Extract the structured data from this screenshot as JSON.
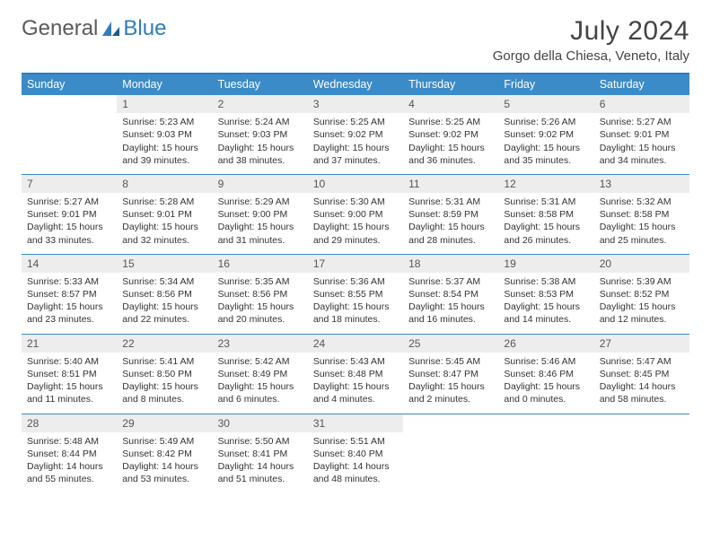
{
  "logo": {
    "text_a": "General",
    "text_b": "Blue"
  },
  "title": "July 2024",
  "location": "Gorgo della Chiesa, Veneto, Italy",
  "colors": {
    "header_blue": "#3b8bc8",
    "accent_blue": "#2f7bbf",
    "daynum_bg": "#ededed",
    "text": "#333333"
  },
  "weekdays": [
    "Sunday",
    "Monday",
    "Tuesday",
    "Wednesday",
    "Thursday",
    "Friday",
    "Saturday"
  ],
  "weeks": [
    [
      null,
      {
        "n": "1",
        "sr": "Sunrise: 5:23 AM",
        "ss": "Sunset: 9:03 PM",
        "dl": "Daylight: 15 hours and 39 minutes."
      },
      {
        "n": "2",
        "sr": "Sunrise: 5:24 AM",
        "ss": "Sunset: 9:03 PM",
        "dl": "Daylight: 15 hours and 38 minutes."
      },
      {
        "n": "3",
        "sr": "Sunrise: 5:25 AM",
        "ss": "Sunset: 9:02 PM",
        "dl": "Daylight: 15 hours and 37 minutes."
      },
      {
        "n": "4",
        "sr": "Sunrise: 5:25 AM",
        "ss": "Sunset: 9:02 PM",
        "dl": "Daylight: 15 hours and 36 minutes."
      },
      {
        "n": "5",
        "sr": "Sunrise: 5:26 AM",
        "ss": "Sunset: 9:02 PM",
        "dl": "Daylight: 15 hours and 35 minutes."
      },
      {
        "n": "6",
        "sr": "Sunrise: 5:27 AM",
        "ss": "Sunset: 9:01 PM",
        "dl": "Daylight: 15 hours and 34 minutes."
      }
    ],
    [
      {
        "n": "7",
        "sr": "Sunrise: 5:27 AM",
        "ss": "Sunset: 9:01 PM",
        "dl": "Daylight: 15 hours and 33 minutes."
      },
      {
        "n": "8",
        "sr": "Sunrise: 5:28 AM",
        "ss": "Sunset: 9:01 PM",
        "dl": "Daylight: 15 hours and 32 minutes."
      },
      {
        "n": "9",
        "sr": "Sunrise: 5:29 AM",
        "ss": "Sunset: 9:00 PM",
        "dl": "Daylight: 15 hours and 31 minutes."
      },
      {
        "n": "10",
        "sr": "Sunrise: 5:30 AM",
        "ss": "Sunset: 9:00 PM",
        "dl": "Daylight: 15 hours and 29 minutes."
      },
      {
        "n": "11",
        "sr": "Sunrise: 5:31 AM",
        "ss": "Sunset: 8:59 PM",
        "dl": "Daylight: 15 hours and 28 minutes."
      },
      {
        "n": "12",
        "sr": "Sunrise: 5:31 AM",
        "ss": "Sunset: 8:58 PM",
        "dl": "Daylight: 15 hours and 26 minutes."
      },
      {
        "n": "13",
        "sr": "Sunrise: 5:32 AM",
        "ss": "Sunset: 8:58 PM",
        "dl": "Daylight: 15 hours and 25 minutes."
      }
    ],
    [
      {
        "n": "14",
        "sr": "Sunrise: 5:33 AM",
        "ss": "Sunset: 8:57 PM",
        "dl": "Daylight: 15 hours and 23 minutes."
      },
      {
        "n": "15",
        "sr": "Sunrise: 5:34 AM",
        "ss": "Sunset: 8:56 PM",
        "dl": "Daylight: 15 hours and 22 minutes."
      },
      {
        "n": "16",
        "sr": "Sunrise: 5:35 AM",
        "ss": "Sunset: 8:56 PM",
        "dl": "Daylight: 15 hours and 20 minutes."
      },
      {
        "n": "17",
        "sr": "Sunrise: 5:36 AM",
        "ss": "Sunset: 8:55 PM",
        "dl": "Daylight: 15 hours and 18 minutes."
      },
      {
        "n": "18",
        "sr": "Sunrise: 5:37 AM",
        "ss": "Sunset: 8:54 PM",
        "dl": "Daylight: 15 hours and 16 minutes."
      },
      {
        "n": "19",
        "sr": "Sunrise: 5:38 AM",
        "ss": "Sunset: 8:53 PM",
        "dl": "Daylight: 15 hours and 14 minutes."
      },
      {
        "n": "20",
        "sr": "Sunrise: 5:39 AM",
        "ss": "Sunset: 8:52 PM",
        "dl": "Daylight: 15 hours and 12 minutes."
      }
    ],
    [
      {
        "n": "21",
        "sr": "Sunrise: 5:40 AM",
        "ss": "Sunset: 8:51 PM",
        "dl": "Daylight: 15 hours and 11 minutes."
      },
      {
        "n": "22",
        "sr": "Sunrise: 5:41 AM",
        "ss": "Sunset: 8:50 PM",
        "dl": "Daylight: 15 hours and 8 minutes."
      },
      {
        "n": "23",
        "sr": "Sunrise: 5:42 AM",
        "ss": "Sunset: 8:49 PM",
        "dl": "Daylight: 15 hours and 6 minutes."
      },
      {
        "n": "24",
        "sr": "Sunrise: 5:43 AM",
        "ss": "Sunset: 8:48 PM",
        "dl": "Daylight: 15 hours and 4 minutes."
      },
      {
        "n": "25",
        "sr": "Sunrise: 5:45 AM",
        "ss": "Sunset: 8:47 PM",
        "dl": "Daylight: 15 hours and 2 minutes."
      },
      {
        "n": "26",
        "sr": "Sunrise: 5:46 AM",
        "ss": "Sunset: 8:46 PM",
        "dl": "Daylight: 15 hours and 0 minutes."
      },
      {
        "n": "27",
        "sr": "Sunrise: 5:47 AM",
        "ss": "Sunset: 8:45 PM",
        "dl": "Daylight: 14 hours and 58 minutes."
      }
    ],
    [
      {
        "n": "28",
        "sr": "Sunrise: 5:48 AM",
        "ss": "Sunset: 8:44 PM",
        "dl": "Daylight: 14 hours and 55 minutes."
      },
      {
        "n": "29",
        "sr": "Sunrise: 5:49 AM",
        "ss": "Sunset: 8:42 PM",
        "dl": "Daylight: 14 hours and 53 minutes."
      },
      {
        "n": "30",
        "sr": "Sunrise: 5:50 AM",
        "ss": "Sunset: 8:41 PM",
        "dl": "Daylight: 14 hours and 51 minutes."
      },
      {
        "n": "31",
        "sr": "Sunrise: 5:51 AM",
        "ss": "Sunset: 8:40 PM",
        "dl": "Daylight: 14 hours and 48 minutes."
      },
      null,
      null,
      null
    ]
  ]
}
